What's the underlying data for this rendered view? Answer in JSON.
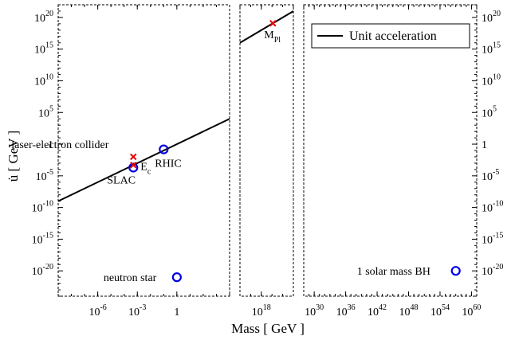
{
  "chart_data": {
    "type": "scatter",
    "xlabel": "Mass [ GeV ]",
    "ylabel": "u̇ [ GeV ]",
    "y_scale": "log",
    "x_scale": "log (broken axis, 3 panels)",
    "ylim": [
      1e-24,
      1e+22
    ],
    "y_ticks": [
      {
        "value": 1e+20,
        "base": "10",
        "exp": "20"
      },
      {
        "value": 1000000000000000.0,
        "base": "10",
        "exp": "15"
      },
      {
        "value": 10000000000.0,
        "base": "10",
        "exp": "10"
      },
      {
        "value": 100000.0,
        "base": "10",
        "exp": "5"
      },
      {
        "value": 1,
        "base": "1",
        "exp": ""
      },
      {
        "value": 1e-05,
        "base": "10",
        "exp": "-5"
      },
      {
        "value": 1e-10,
        "base": "10",
        "exp": "-10"
      },
      {
        "value": 1e-15,
        "base": "10",
        "exp": "-15"
      },
      {
        "value": 1e-20,
        "base": "10",
        "exp": "-20"
      }
    ],
    "panels": [
      {
        "xlim": [
          1e-09,
          10000.0
        ],
        "x_ticks": [
          {
            "value": 1e-06,
            "base": "10",
            "exp": "-6"
          },
          {
            "value": 0.001,
            "base": "10",
            "exp": "-3"
          },
          {
            "value": 1,
            "base": "1",
            "exp": ""
          }
        ]
      },
      {
        "xlim": [
          1e+16,
          1e+21
        ],
        "x_ticks": [
          {
            "value": 1e+18,
            "base": "10",
            "exp": "18"
          }
        ]
      },
      {
        "xlim": [
          1e+28,
          1e+61
        ],
        "x_ticks": [
          {
            "value": 1e+30,
            "base": "10",
            "exp": "30"
          },
          {
            "value": 1e+36,
            "base": "10",
            "exp": "36"
          },
          {
            "value": 1e+42,
            "base": "10",
            "exp": "42"
          },
          {
            "value": 1e+48,
            "base": "10",
            "exp": "48"
          },
          {
            "value": 1e+54,
            "base": "10",
            "exp": "54"
          },
          {
            "value": 1e+60,
            "base": "10",
            "exp": "60"
          }
        ]
      }
    ],
    "series": [
      {
        "name": "Unit acceleration",
        "kind": "line",
        "slope_in_log": 1,
        "segments": [
          {
            "x": [
              1e-09,
              10000.0
            ],
            "y": [
              1e-09,
              10000.0
            ]
          },
          {
            "x": [
              1e+16,
              1e+21
            ],
            "y": [
              1e+16,
              1e+21
            ]
          }
        ]
      },
      {
        "kind": "circles",
        "points": [
          {
            "label": "SLAC",
            "x": 0.0005,
            "y": 0.0002
          },
          {
            "label": "RHIC",
            "x": 0.1,
            "y": 0.15
          },
          {
            "label": "neutron star",
            "x": 1,
            "y": 1e-21
          },
          {
            "label": "1 solar mass BH",
            "x": 1e+57,
            "y": 1e-20
          }
        ]
      },
      {
        "kind": "crosses",
        "points": [
          {
            "label": "laser-electron collider",
            "x": 0.0005,
            "y": 0.01
          },
          {
            "label": "E",
            "label_sub": "c",
            "x": 0.0005,
            "y": 0.0005
          },
          {
            "label": "M",
            "label_sub": "Pl",
            "x": 1.2e+19,
            "y": 1.2e+19
          }
        ]
      }
    ],
    "legend": {
      "placement": "top-right",
      "entries": [
        "Unit acceleration"
      ]
    },
    "grid": false
  }
}
